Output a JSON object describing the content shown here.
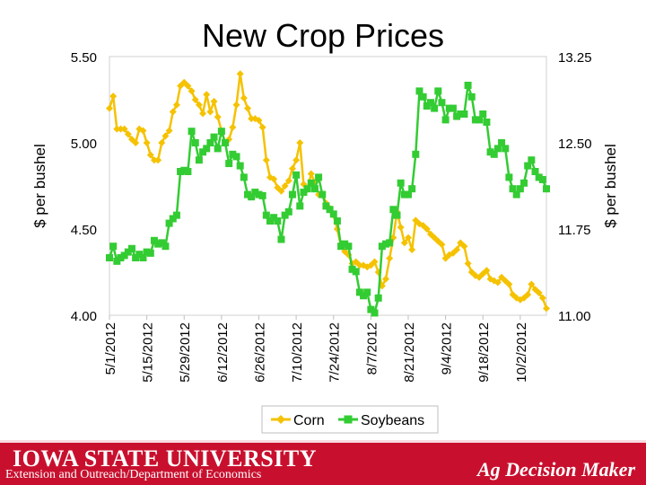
{
  "chart_data": {
    "type": "line",
    "title": "New Crop Prices",
    "ylabel_left": "$ per bushel",
    "ylabel_right": "$ per bushel",
    "ylim_left": [
      4.0,
      5.5
    ],
    "ylim_right": [
      11.0,
      13.25
    ],
    "yticks_left": [
      "4.00",
      "4.50",
      "5.00",
      "5.50"
    ],
    "yticks_right": [
      "11.00",
      "11.75",
      "12.50",
      "13.25"
    ],
    "x_count": 118,
    "x_tick_labels": [
      {
        "index": 0,
        "label": "5/1/2012"
      },
      {
        "index": 10,
        "label": "5/15/2012"
      },
      {
        "index": 20,
        "label": "5/29/2012"
      },
      {
        "index": 30,
        "label": "6/12/2012"
      },
      {
        "index": 40,
        "label": "6/26/2012"
      },
      {
        "index": 50,
        "label": "7/10/2012"
      },
      {
        "index": 60,
        "label": "7/24/2012"
      },
      {
        "index": 70,
        "label": "8/7/2012"
      },
      {
        "index": 80,
        "label": "8/21/2012"
      },
      {
        "index": 90,
        "label": "9/4/2012"
      },
      {
        "index": 100,
        "label": "9/18/2012"
      },
      {
        "index": 110,
        "label": "10/2/2012"
      }
    ],
    "legend_position": "bottom",
    "series": [
      {
        "name": "Corn",
        "axis": "left",
        "color": "#f5c200",
        "points": [
          [
            0,
            5.2
          ],
          [
            1,
            5.27
          ],
          [
            2,
            5.08
          ],
          [
            3,
            5.08
          ],
          [
            4,
            5.08
          ],
          [
            5,
            5.05
          ],
          [
            6,
            5.02
          ],
          [
            7,
            5.0
          ],
          [
            8,
            5.08
          ],
          [
            9,
            5.07
          ],
          [
            10,
            5.0
          ],
          [
            11,
            4.93
          ],
          [
            12,
            4.9
          ],
          [
            13,
            4.9
          ],
          [
            14,
            5.0
          ],
          [
            15,
            5.04
          ],
          [
            16,
            5.07
          ],
          [
            17,
            5.18
          ],
          [
            18,
            5.22
          ],
          [
            19,
            5.33
          ],
          [
            20,
            5.35
          ],
          [
            21,
            5.33
          ],
          [
            22,
            5.3
          ],
          [
            23,
            5.25
          ],
          [
            24,
            5.22
          ],
          [
            25,
            5.17
          ],
          [
            26,
            5.28
          ],
          [
            27,
            5.18
          ],
          [
            28,
            5.24
          ],
          [
            29,
            5.15
          ],
          [
            30,
            5.07
          ],
          [
            31,
            5.0
          ],
          [
            32,
            5.02
          ],
          [
            33,
            5.09
          ],
          [
            34,
            5.22
          ],
          [
            35,
            5.4
          ],
          [
            36,
            5.26
          ],
          [
            37,
            5.2
          ],
          [
            38,
            5.14
          ],
          [
            39,
            5.14
          ],
          [
            40,
            5.13
          ],
          [
            41,
            5.09
          ],
          [
            42,
            4.9
          ],
          [
            43,
            4.8
          ],
          [
            44,
            4.79
          ],
          [
            45,
            4.74
          ],
          [
            46,
            4.72
          ],
          [
            47,
            4.75
          ],
          [
            48,
            4.78
          ],
          [
            49,
            4.85
          ],
          [
            50,
            4.9
          ],
          [
            51,
            5.0
          ],
          [
            52,
            4.76
          ],
          [
            53,
            4.73
          ],
          [
            54,
            4.82
          ],
          [
            55,
            4.77
          ],
          [
            56,
            4.7
          ],
          [
            57,
            4.7
          ],
          [
            58,
            4.65
          ],
          [
            59,
            4.62
          ],
          [
            60,
            4.58
          ],
          [
            61,
            4.5
          ],
          [
            62,
            4.4
          ],
          [
            63,
            4.37
          ],
          [
            64,
            4.35
          ],
          [
            65,
            4.3
          ],
          [
            66,
            4.31
          ],
          [
            67,
            4.29
          ],
          [
            68,
            4.29
          ],
          [
            69,
            4.28
          ],
          [
            70,
            4.29
          ],
          [
            71,
            4.31
          ],
          [
            72,
            4.25
          ],
          [
            73,
            4.17
          ],
          [
            74,
            4.21
          ],
          [
            75,
            4.33
          ],
          [
            76,
            4.45
          ],
          [
            77,
            4.6
          ],
          [
            78,
            4.51
          ],
          [
            79,
            4.42
          ],
          [
            80,
            4.45
          ],
          [
            81,
            4.38
          ],
          [
            82,
            4.55
          ],
          [
            83,
            4.53
          ],
          [
            84,
            4.52
          ],
          [
            85,
            4.5
          ],
          [
            86,
            4.47
          ],
          [
            87,
            4.45
          ],
          [
            88,
            4.43
          ],
          [
            89,
            4.41
          ],
          [
            90,
            4.33
          ],
          [
            91,
            4.35
          ],
          [
            92,
            4.36
          ],
          [
            93,
            4.38
          ],
          [
            94,
            4.42
          ],
          [
            95,
            4.4
          ],
          [
            96,
            4.3
          ],
          [
            97,
            4.25
          ],
          [
            98,
            4.23
          ],
          [
            99,
            4.22
          ],
          [
            100,
            4.24
          ],
          [
            101,
            4.26
          ],
          [
            102,
            4.21
          ],
          [
            103,
            4.2
          ],
          [
            104,
            4.19
          ],
          [
            105,
            4.22
          ],
          [
            106,
            4.2
          ],
          [
            107,
            4.18
          ],
          [
            108,
            4.12
          ],
          [
            109,
            4.1
          ],
          [
            110,
            4.09
          ],
          [
            111,
            4.1
          ],
          [
            112,
            4.12
          ],
          [
            113,
            4.18
          ],
          [
            114,
            4.15
          ],
          [
            115,
            4.13
          ],
          [
            116,
            4.1
          ],
          [
            117,
            4.04
          ]
        ]
      },
      {
        "name": "Soybeans",
        "axis": "right",
        "color": "#33cc33",
        "points": [
          [
            0,
            11.5
          ],
          [
            1,
            11.6
          ],
          [
            2,
            11.47
          ],
          [
            3,
            11.5
          ],
          [
            4,
            11.52
          ],
          [
            5,
            11.55
          ],
          [
            6,
            11.58
          ],
          [
            7,
            11.5
          ],
          [
            8,
            11.53
          ],
          [
            9,
            11.5
          ],
          [
            10,
            11.55
          ],
          [
            11,
            11.54
          ],
          [
            12,
            11.65
          ],
          [
            13,
            11.62
          ],
          [
            14,
            11.63
          ],
          [
            15,
            11.6
          ],
          [
            16,
            11.8
          ],
          [
            17,
            11.84
          ],
          [
            18,
            11.87
          ],
          [
            19,
            12.25
          ],
          [
            20,
            12.26
          ],
          [
            21,
            12.25
          ],
          [
            22,
            12.6
          ],
          [
            23,
            12.5
          ],
          [
            24,
            12.35
          ],
          [
            25,
            12.42
          ],
          [
            26,
            12.45
          ],
          [
            27,
            12.5
          ],
          [
            28,
            12.55
          ],
          [
            29,
            12.45
          ],
          [
            30,
            12.6
          ],
          [
            31,
            12.5
          ],
          [
            32,
            12.32
          ],
          [
            33,
            12.4
          ],
          [
            34,
            12.38
          ],
          [
            35,
            12.3
          ],
          [
            36,
            12.2
          ],
          [
            37,
            12.05
          ],
          [
            38,
            12.03
          ],
          [
            39,
            12.07
          ],
          [
            40,
            12.05
          ],
          [
            41,
            12.04
          ],
          [
            42,
            11.87
          ],
          [
            43,
            11.82
          ],
          [
            44,
            11.85
          ],
          [
            45,
            11.82
          ],
          [
            46,
            11.66
          ],
          [
            47,
            11.87
          ],
          [
            48,
            11.9
          ],
          [
            49,
            12.05
          ],
          [
            50,
            12.22
          ],
          [
            51,
            11.95
          ],
          [
            52,
            12.07
          ],
          [
            53,
            12.1
          ],
          [
            54,
            12.15
          ],
          [
            55,
            12.1
          ],
          [
            56,
            12.2
          ],
          [
            57,
            12.05
          ],
          [
            58,
            11.95
          ],
          [
            59,
            11.92
          ],
          [
            60,
            11.88
          ],
          [
            61,
            11.82
          ],
          [
            62,
            11.6
          ],
          [
            63,
            11.62
          ],
          [
            64,
            11.6
          ],
          [
            65,
            11.4
          ],
          [
            66,
            11.38
          ],
          [
            67,
            11.2
          ],
          [
            68,
            11.17
          ],
          [
            69,
            11.2
          ],
          [
            70,
            11.05
          ],
          [
            71,
            11.02
          ],
          [
            72,
            11.15
          ],
          [
            73,
            11.6
          ],
          [
            74,
            11.62
          ],
          [
            75,
            11.63
          ],
          [
            76,
            11.92
          ],
          [
            77,
            11.87
          ],
          [
            78,
            12.15
          ],
          [
            79,
            12.05
          ],
          [
            80,
            12.05
          ],
          [
            81,
            12.1
          ],
          [
            82,
            12.4
          ],
          [
            83,
            12.95
          ],
          [
            84,
            12.9
          ],
          [
            85,
            12.82
          ],
          [
            86,
            12.85
          ],
          [
            87,
            12.8
          ],
          [
            88,
            12.95
          ],
          [
            89,
            12.85
          ],
          [
            90,
            12.7
          ],
          [
            91,
            12.8
          ],
          [
            92,
            12.8
          ],
          [
            93,
            12.73
          ],
          [
            94,
            12.75
          ],
          [
            95,
            12.75
          ],
          [
            96,
            13.0
          ],
          [
            97,
            12.9
          ],
          [
            98,
            12.7
          ],
          [
            99,
            12.7
          ],
          [
            100,
            12.75
          ],
          [
            101,
            12.68
          ],
          [
            102,
            12.42
          ],
          [
            103,
            12.4
          ],
          [
            104,
            12.45
          ],
          [
            105,
            12.5
          ],
          [
            106,
            12.45
          ],
          [
            107,
            12.2
          ],
          [
            108,
            12.1
          ],
          [
            109,
            12.05
          ],
          [
            110,
            12.1
          ],
          [
            111,
            12.15
          ],
          [
            112,
            12.3
          ],
          [
            113,
            12.35
          ],
          [
            114,
            12.25
          ],
          [
            115,
            12.2
          ],
          [
            116,
            12.18
          ],
          [
            117,
            12.1
          ]
        ]
      }
    ]
  },
  "footer": {
    "university": "IOWA STATE UNIVERSITY",
    "department": "Extension and Outreach/Department of Economics",
    "brand": "Ag Decision Maker"
  }
}
